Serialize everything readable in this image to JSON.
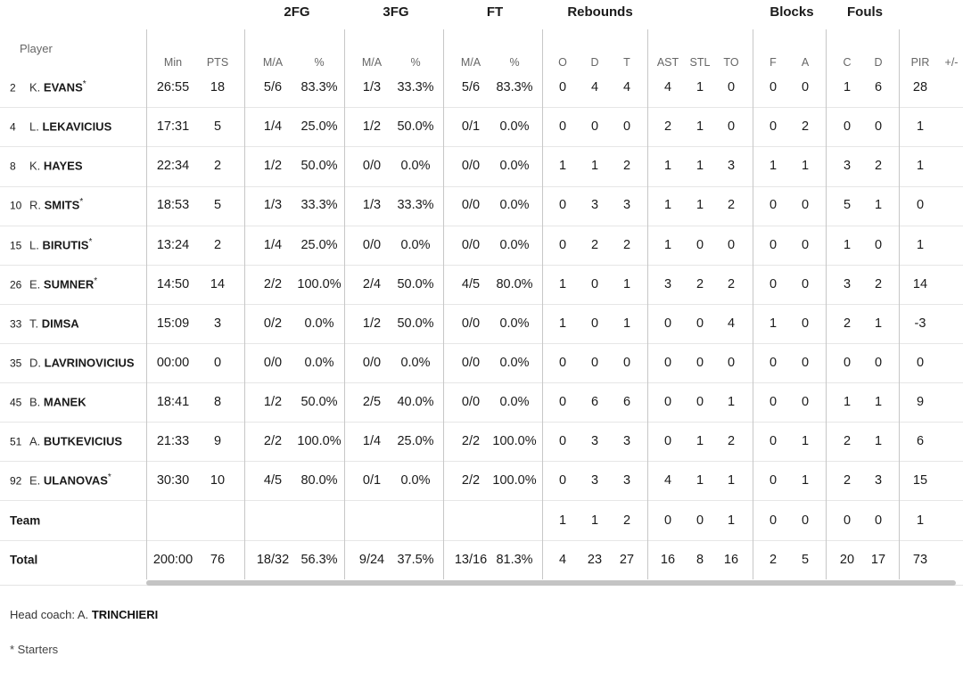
{
  "headers": {
    "player": "Player",
    "groups": [
      {
        "key": "2fg",
        "label": "2FG"
      },
      {
        "key": "3fg",
        "label": "3FG"
      },
      {
        "key": "ft",
        "label": "FT"
      },
      {
        "key": "reb",
        "label": "Rebounds"
      },
      {
        "key": "blk",
        "label": "Blocks"
      },
      {
        "key": "fouls",
        "label": "Fouls"
      }
    ],
    "columns": [
      "Min",
      "PTS",
      "M/A",
      "%",
      "M/A",
      "%",
      "M/A",
      "%",
      "O",
      "D",
      "T",
      "AST",
      "STL",
      "TO",
      "F",
      "A",
      "C",
      "D",
      "PIR",
      "+/-"
    ]
  },
  "rows": [
    {
      "num": "2",
      "initial": "K.",
      "surname": "EVANS",
      "star": "*",
      "stats": [
        "26:55",
        "18",
        "5/6",
        "83.3%",
        "1/3",
        "33.3%",
        "5/6",
        "83.3%",
        "0",
        "4",
        "4",
        "4",
        "1",
        "0",
        "0",
        "0",
        "1",
        "6",
        "28",
        ""
      ]
    },
    {
      "num": "4",
      "initial": "L.",
      "surname": "LEKAVICIUS",
      "star": "",
      "stats": [
        "17:31",
        "5",
        "1/4",
        "25.0%",
        "1/2",
        "50.0%",
        "0/1",
        "0.0%",
        "0",
        "0",
        "0",
        "2",
        "1",
        "0",
        "0",
        "2",
        "0",
        "0",
        "1",
        ""
      ]
    },
    {
      "num": "8",
      "initial": "K.",
      "surname": "HAYES",
      "star": "",
      "stats": [
        "22:34",
        "2",
        "1/2",
        "50.0%",
        "0/0",
        "0.0%",
        "0/0",
        "0.0%",
        "1",
        "1",
        "2",
        "1",
        "1",
        "3",
        "1",
        "1",
        "3",
        "2",
        "1",
        ""
      ]
    },
    {
      "num": "10",
      "initial": "R.",
      "surname": "SMITS",
      "star": "*",
      "stats": [
        "18:53",
        "5",
        "1/3",
        "33.3%",
        "1/3",
        "33.3%",
        "0/0",
        "0.0%",
        "0",
        "3",
        "3",
        "1",
        "1",
        "2",
        "0",
        "0",
        "5",
        "1",
        "0",
        ""
      ]
    },
    {
      "num": "15",
      "initial": "L.",
      "surname": "BIRUTIS",
      "star": "*",
      "stats": [
        "13:24",
        "2",
        "1/4",
        "25.0%",
        "0/0",
        "0.0%",
        "0/0",
        "0.0%",
        "0",
        "2",
        "2",
        "1",
        "0",
        "0",
        "0",
        "0",
        "1",
        "0",
        "1",
        ""
      ]
    },
    {
      "num": "26",
      "initial": "E.",
      "surname": "SUMNER",
      "star": "*",
      "stats": [
        "14:50",
        "14",
        "2/2",
        "100.0%",
        "2/4",
        "50.0%",
        "4/5",
        "80.0%",
        "1",
        "0",
        "1",
        "3",
        "2",
        "2",
        "0",
        "0",
        "3",
        "2",
        "14",
        ""
      ]
    },
    {
      "num": "33",
      "initial": "T.",
      "surname": "DIMSA",
      "star": "",
      "stats": [
        "15:09",
        "3",
        "0/2",
        "0.0%",
        "1/2",
        "50.0%",
        "0/0",
        "0.0%",
        "1",
        "0",
        "1",
        "0",
        "0",
        "4",
        "1",
        "0",
        "2",
        "1",
        "-3",
        ""
      ]
    },
    {
      "num": "35",
      "initial": "D.",
      "surname": "LAVRINOVICIUS",
      "star": "",
      "stats": [
        "00:00",
        "0",
        "0/0",
        "0.0%",
        "0/0",
        "0.0%",
        "0/0",
        "0.0%",
        "0",
        "0",
        "0",
        "0",
        "0",
        "0",
        "0",
        "0",
        "0",
        "0",
        "0",
        ""
      ]
    },
    {
      "num": "45",
      "initial": "B.",
      "surname": "MANEK",
      "star": "",
      "stats": [
        "18:41",
        "8",
        "1/2",
        "50.0%",
        "2/5",
        "40.0%",
        "0/0",
        "0.0%",
        "0",
        "6",
        "6",
        "0",
        "0",
        "1",
        "0",
        "0",
        "1",
        "1",
        "9",
        ""
      ]
    },
    {
      "num": "51",
      "initial": "A.",
      "surname": "BUTKEVICIUS",
      "star": "",
      "stats": [
        "21:33",
        "9",
        "2/2",
        "100.0%",
        "1/4",
        "25.0%",
        "2/2",
        "100.0%",
        "0",
        "3",
        "3",
        "0",
        "1",
        "2",
        "0",
        "1",
        "2",
        "1",
        "6",
        ""
      ]
    },
    {
      "num": "92",
      "initial": "E.",
      "surname": "ULANOVAS",
      "star": "*",
      "stats": [
        "30:30",
        "10",
        "4/5",
        "80.0%",
        "0/1",
        "0.0%",
        "2/2",
        "100.0%",
        "0",
        "3",
        "3",
        "4",
        "1",
        "1",
        "0",
        "1",
        "2",
        "3",
        "15",
        ""
      ]
    }
  ],
  "team_row": {
    "label": "Team",
    "stats": [
      "",
      "",
      "",
      "",
      "",
      "",
      "",
      "",
      "1",
      "1",
      "2",
      "0",
      "0",
      "1",
      "0",
      "0",
      "0",
      "0",
      "1",
      ""
    ]
  },
  "total_row": {
    "label": "Total",
    "stats": [
      "200:00",
      "76",
      "18/32",
      "56.3%",
      "9/24",
      "37.5%",
      "13/16",
      "81.3%",
      "4",
      "23",
      "27",
      "16",
      "8",
      "16",
      "2",
      "5",
      "20",
      "17",
      "73",
      ""
    ]
  },
  "coach": {
    "prefix": "Head coach: ",
    "initial": "A.",
    "surname": "TRINCHIERI"
  },
  "legend": "* Starters"
}
